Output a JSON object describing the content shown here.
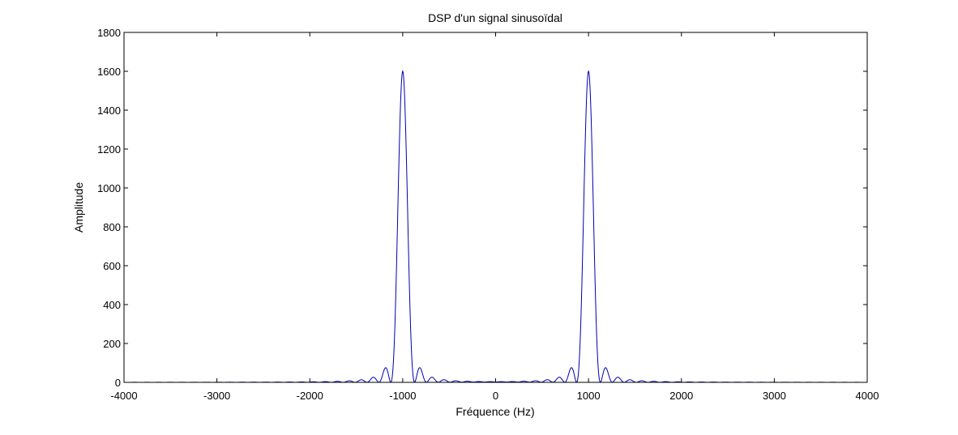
{
  "chart_data": {
    "type": "line",
    "title": "DSP d'un signal sinusoïdal",
    "xlabel": "Fréquence (Hz)",
    "ylabel": "Amplitude",
    "xlim": [
      -4000,
      4000
    ],
    "ylim": [
      0,
      1800
    ],
    "xticks": [
      -4000,
      -3000,
      -2000,
      -1000,
      0,
      1000,
      2000,
      3000,
      4000
    ],
    "xtick_labels": [
      "-4000",
      "-3000",
      "-2000",
      "-1000",
      "0",
      "1000",
      "2000",
      "3000",
      "4000"
    ],
    "yticks": [
      0,
      200,
      400,
      600,
      800,
      1000,
      1200,
      1400,
      1600,
      1800
    ],
    "ytick_labels": [
      "0",
      "200",
      "400",
      "600",
      "800",
      "1000",
      "1200",
      "1400",
      "1600",
      "1800"
    ],
    "grid": false,
    "series": [
      {
        "color": "#0000b0",
        "peaks": [
          {
            "frequency": -1000,
            "amplitude": 1600
          },
          {
            "frequency": 1000,
            "amplitude": 1600
          }
        ],
        "main_lobe_half_width": 128,
        "x": [
          -4000,
          -1500,
          -1300,
          -1250,
          -1150,
          -1128,
          -1050,
          -1000,
          -950,
          -872,
          -850,
          -750,
          -700,
          -600,
          -500,
          -400,
          -300,
          -200,
          -100,
          0,
          100,
          200,
          300,
          400,
          500,
          600,
          700,
          750,
          850,
          872,
          950,
          1000,
          1050,
          1128,
          1150,
          1250,
          1300,
          1500,
          4000
        ],
        "y": [
          0,
          3,
          10,
          30,
          70,
          0,
          700,
          1600,
          700,
          0,
          70,
          30,
          15,
          9,
          7,
          6,
          5,
          4,
          4,
          4,
          4,
          4,
          5,
          6,
          7,
          9,
          15,
          30,
          70,
          0,
          700,
          1600,
          700,
          0,
          70,
          30,
          10,
          3,
          0
        ]
      }
    ]
  }
}
